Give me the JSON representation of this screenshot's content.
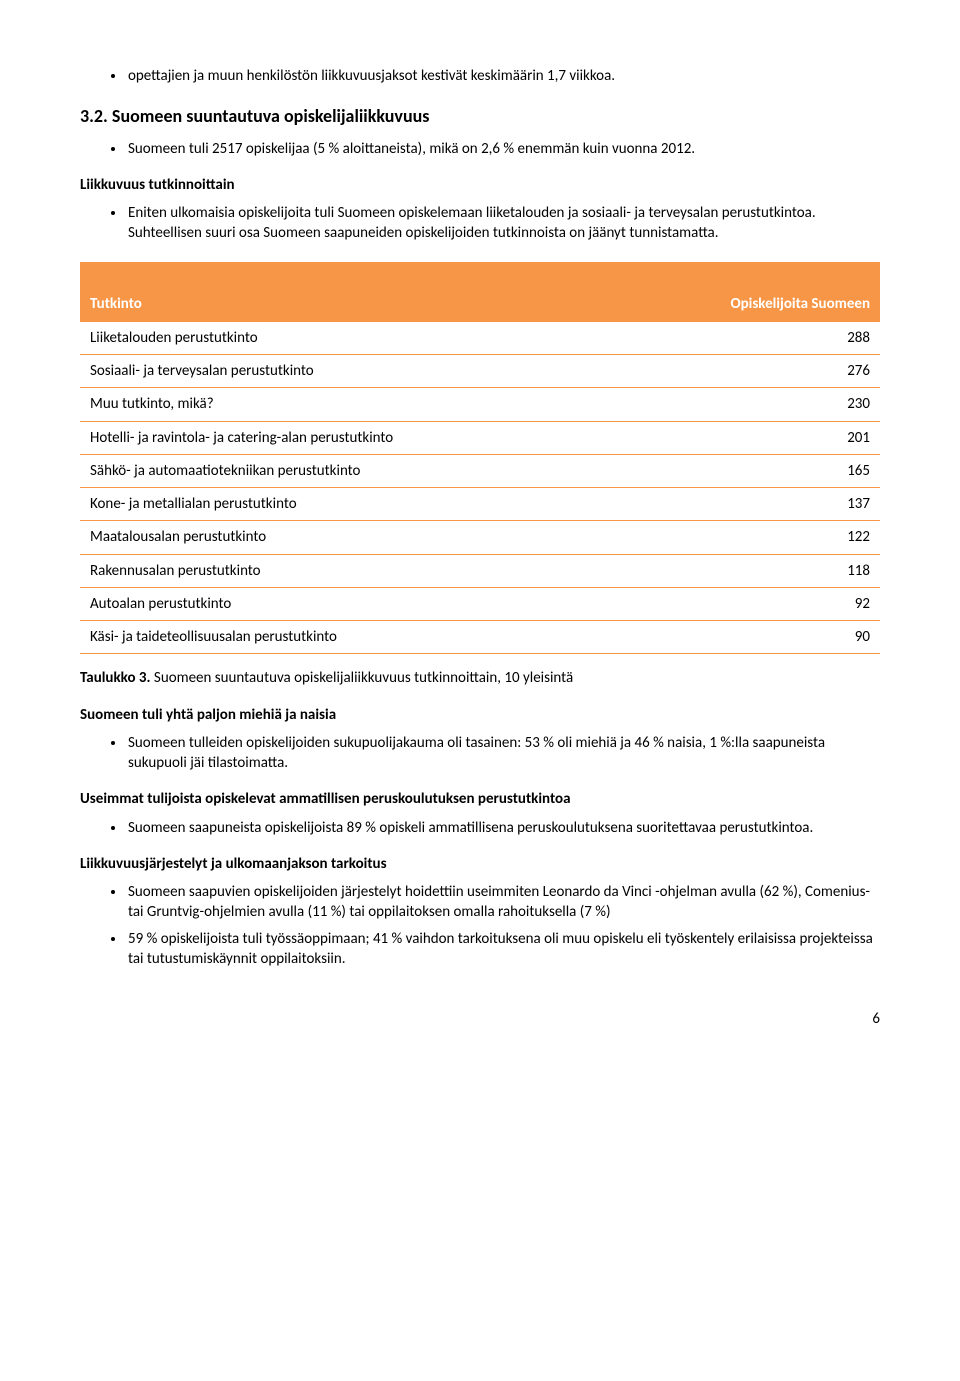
{
  "intro_bullet": "opettajien ja muun henkilöstön liikkuvuusjaksot kestivät keskimäärin 1,7 viikkoa.",
  "section": {
    "number_title": "3.2. Suomeen suuntautuva opiskelijaliikkuvuus",
    "bullet1": "Suomeen tuli 2517 opiskelijaa (5 % aloittaneista), mikä on 2,6 % enemmän kuin vuonna 2012.",
    "sub1_title": "Liikkuvuus tutkinnoittain",
    "sub1_bullet": "Eniten ulkomaisia opiskelijoita tuli Suomeen opiskelemaan liiketalouden ja sosiaali- ja terveysalan perustutkintoa. Suhteellisen suuri osa Suomeen saapuneiden opiskelijoiden tutkinnoista on jäänyt tunnistamatta."
  },
  "table": {
    "header_bg": "#f79646",
    "header_fg": "#ffffff",
    "col1": "Tutkinto",
    "col2": "Opiskelijoita Suomeen",
    "rows": [
      {
        "label": "Liiketalouden perustutkinto",
        "value": "288"
      },
      {
        "label": "Sosiaali- ja terveysalan perustutkinto",
        "value": "276"
      },
      {
        "label": "Muu tutkinto, mikä?",
        "value": "230"
      },
      {
        "label": "Hotelli- ja ravintola- ja catering-alan perustutkinto",
        "value": "201"
      },
      {
        "label": "Sähkö- ja automaatiotekniikan perustutkinto",
        "value": "165"
      },
      {
        "label": "Kone- ja metallialan perustutkinto",
        "value": "137"
      },
      {
        "label": "Maatalousalan perustutkinto",
        "value": "122"
      },
      {
        "label": "Rakennusalan perustutkinto",
        "value": "118"
      },
      {
        "label": "Autoalan perustutkinto",
        "value": "92"
      },
      {
        "label": "Käsi- ja taideteollisuusalan perustutkinto",
        "value": "90"
      }
    ]
  },
  "caption": {
    "label": "Taulukko 3.",
    "text": " Suomeen suuntautuva opiskelijaliikkuvuus tutkinnoittain, 10 yleisintä"
  },
  "after": {
    "h1": "Suomeen tuli yhtä paljon miehiä ja naisia",
    "b1": "Suomeen tulleiden opiskelijoiden sukupuolijakauma oli tasainen: 53 % oli miehiä ja 46 % naisia, 1 %:lla saapuneista sukupuoli jäi tilastoimatta.",
    "h2": "Useimmat tulijoista opiskelevat ammatillisen peruskoulutuksen perustutkintoa",
    "b2": "Suomeen saapuneista opiskelijoista 89 % opiskeli ammatillisena peruskoulutuksena suoritettavaa perustutkintoa.",
    "h3": "Liikkuvuusjärjestelyt ja ulkomaanjakson tarkoitus",
    "b3": "Suomeen saapuvien opiskelijoiden järjestelyt hoidettiin useimmiten Leonardo da Vinci -ohjelman avulla (62 %), Comenius- tai Gruntvig-ohjelmien avulla (11 %) tai oppilaitoksen omalla rahoituksella (7 %)",
    "b4": "59 % opiskelijoista tuli työssäoppimaan; 41 % vaihdon tarkoituksena oli muu opiskelu eli työskentely erilaisissa projekteissa tai tutustumiskäynnit oppilaitoksiin."
  },
  "page_number": "6"
}
